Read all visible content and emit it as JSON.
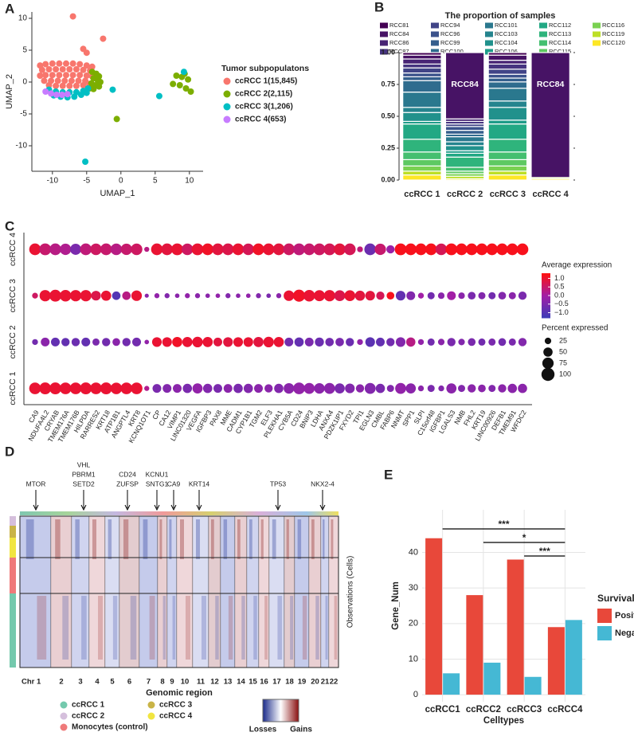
{
  "chart_data": [
    {
      "panel": "A",
      "type": "scatter",
      "x_label": "UMAP_1",
      "y_label": "UMAP_2",
      "legend_title": "Tumor subpopulatons",
      "xlim": [
        -13,
        12
      ],
      "ylim": [
        -14,
        11
      ],
      "xticks": [
        -10,
        -5,
        0,
        5,
        10
      ],
      "yticks": [
        -10,
        -5,
        0,
        5,
        10
      ],
      "series": [
        {
          "name": "ccRCC 1(15,845)",
          "color": "#f8766d",
          "x": [
            -11.8,
            -11,
            -10,
            -9,
            -8,
            -7,
            -6,
            -5,
            -4.2,
            -11.5,
            -10.5,
            -9.5,
            -8.5,
            -7.5,
            -6.5,
            -5.5,
            -4.5,
            -11.8,
            -11,
            -10,
            -9,
            -8,
            -7,
            -6,
            -5,
            -4.2,
            -11.2,
            -10.2,
            -9.2,
            -8.2,
            -7.2,
            -6.2,
            -5.2,
            -10.5,
            -9.5,
            -8.5,
            -7.5,
            -6.5,
            -5.5,
            -4.6,
            -7,
            -2.6,
            -5.5,
            -5
          ],
          "y": [
            2.6,
            2.8,
            2.9,
            2.9,
            2.9,
            2.9,
            2.8,
            2.6,
            2.4,
            1.9,
            2,
            2,
            2,
            2,
            2,
            1.9,
            1.8,
            1,
            1.1,
            1.1,
            1.1,
            1.1,
            1.1,
            1.1,
            1,
            0.9,
            0.2,
            0.2,
            0.2,
            0.2,
            0.2,
            0.2,
            0.2,
            -0.5,
            -0.6,
            -0.6,
            -0.6,
            -0.6,
            -0.5,
            -0.3,
            10.3,
            6.8,
            5.2,
            4.6
          ]
        },
        {
          "name": "ccRCC 2(2,115)",
          "color": "#7cae00",
          "x": [
            -4.2,
            -3.6,
            -3.2,
            -4,
            -3.4,
            -3,
            -4.3,
            -3.7,
            -3.2,
            -4.6,
            -4,
            7.6,
            8.1,
            8.9,
            9.3,
            9.8,
            10.2,
            8.6,
            9.5,
            -0.6
          ],
          "y": [
            1.6,
            1.3,
            0.9,
            0.6,
            0.3,
            0,
            -0.2,
            -0.5,
            -0.7,
            -1,
            -1.1,
            -0.3,
            1,
            0.8,
            1.3,
            0.4,
            -1.5,
            -0.5,
            -1,
            -5.8
          ]
        },
        {
          "name": "ccRCC 3(1,206)",
          "color": "#00bfc4",
          "x": [
            -10.5,
            -9.5,
            -8.5,
            -7.5,
            -6.5,
            -5.5,
            -4.8,
            -9.8,
            -8.8,
            -7.8,
            -6.8,
            -5.8,
            -5,
            -1.2,
            5.6,
            -5.2,
            9.2
          ],
          "y": [
            -1.2,
            -1.5,
            -1.6,
            -1.6,
            -1.6,
            -1.4,
            -1,
            -2.1,
            -2.3,
            -2.4,
            -2.3,
            -2,
            -1.7,
            -1.2,
            -2.2,
            -12.5,
            1.6
          ]
        },
        {
          "name": "ccRCC 4(653)",
          "color": "#c77cff",
          "x": [
            -11,
            -10.2,
            -9.4,
            -8.6,
            -7.8
          ],
          "y": [
            -1.5,
            -1.8,
            -2,
            -2,
            -1.9
          ]
        }
      ]
    },
    {
      "panel": "B",
      "type": "stacked_bar",
      "title": "The proportion of samples",
      "categories": [
        "ccRCC 1",
        "ccRCC 2",
        "ccRCC 3",
        "ccRCC 4"
      ],
      "segment_labels": [
        null,
        "RCC84",
        null,
        "RCC84"
      ],
      "ylim": [
        0,
        1
      ],
      "yticks": [
        {
          "value": 1,
          "label": "1.00"
        },
        {
          "value": 0.75,
          "label": "0.75"
        },
        {
          "value": 0.5,
          "label": "0.50"
        },
        {
          "value": 0.25,
          "label": "0.25"
        },
        {
          "value": 0,
          "label": "0.00"
        }
      ],
      "series": [
        {
          "name": "RCC81",
          "color": "#440154",
          "values": [
            0.02,
            0,
            0.02,
            0
          ]
        },
        {
          "name": "RCC84",
          "color": "#471365",
          "values": [
            0.03,
            0.52,
            0.04,
            0.98
          ]
        },
        {
          "name": "RCC86",
          "color": "#482475",
          "values": [
            0.04,
            0.02,
            0.03,
            0
          ]
        },
        {
          "name": "RCC87",
          "color": "#463480",
          "values": [
            0.03,
            0.02,
            0.04,
            0
          ]
        },
        {
          "name": "RCC94",
          "color": "#414487",
          "values": [
            0.04,
            0.02,
            0.04,
            0
          ]
        },
        {
          "name": "RCC96",
          "color": "#3b528b",
          "values": [
            0.03,
            0.03,
            0.03,
            0
          ]
        },
        {
          "name": "RCC99",
          "color": "#355f8d",
          "values": [
            0.03,
            0.03,
            0.03,
            0
          ]
        },
        {
          "name": "RCC100",
          "color": "#2f6c8e",
          "values": [
            0.09,
            0.02,
            0.05,
            0
          ]
        },
        {
          "name": "RCC101",
          "color": "#2a788e",
          "values": [
            0.12,
            0.04,
            0.1,
            0
          ]
        },
        {
          "name": "RCC103",
          "color": "#25848e",
          "values": [
            0.04,
            0.03,
            0.05,
            0
          ]
        },
        {
          "name": "RCC104",
          "color": "#21918c",
          "values": [
            0.07,
            0.04,
            0.1,
            0
          ]
        },
        {
          "name": "RCC106",
          "color": "#1e9c89",
          "values": [
            0.02,
            0.02,
            0.03,
            0
          ]
        },
        {
          "name": "RCC112",
          "color": "#22a884",
          "values": [
            0.12,
            0.03,
            0.12,
            0
          ]
        },
        {
          "name": "RCC113",
          "color": "#2fb47c",
          "values": [
            0.1,
            0.08,
            0.1,
            0
          ]
        },
        {
          "name": "RCC114",
          "color": "#44bf70",
          "values": [
            0.06,
            0.03,
            0.06,
            0
          ]
        },
        {
          "name": "RCC115",
          "color": "#5ec962",
          "values": [
            0.05,
            0.02,
            0.05,
            0
          ]
        },
        {
          "name": "RCC116",
          "color": "#7ad151",
          "values": [
            0.04,
            0.02,
            0.04,
            0
          ]
        },
        {
          "name": "RCC119",
          "color": "#bddf26",
          "values": [
            0.03,
            0.02,
            0.03,
            0.01
          ]
        },
        {
          "name": "RCC120",
          "color": "#fde725",
          "values": [
            0.04,
            0.01,
            0.04,
            0.01
          ]
        }
      ]
    },
    {
      "panel": "C",
      "type": "dot",
      "genes": [
        "CA9",
        "NDUFA4L2",
        "CRYAB",
        "TMEM176A",
        "TMEM176B",
        "HILPDA",
        "RARRES2",
        "KRT18",
        "ATP1B1",
        "ANGPTL4",
        "KRT8",
        "KCNQ1OT1",
        "CP",
        "CA12",
        "VIMP1",
        "LINC01320",
        "VEGFA",
        "IGFBP3",
        "PAX8",
        "MME",
        "CADM1",
        "CYP1B1",
        "TGM2",
        "ELF3",
        "PLEKHA1",
        "CYB5A",
        "CD24",
        "BNIP3",
        "LDHA",
        "ANXA4",
        "PDZK1IP1",
        "FXYD2",
        "TPI1",
        "EGLN3",
        "CMBL",
        "FABP6",
        "NNMT",
        "SPP1",
        "SLPI",
        "C15orf48",
        "IGFBP1",
        "LGALS3",
        "NMB",
        "FHL2",
        "KRT19",
        "LINC00926",
        "DEFB1",
        "TMEM91",
        "WFDC2"
      ],
      "rows": [
        {
          "name": "ccRCC 4",
          "expression": [
            1,
            0.5,
            0.3,
            0.2,
            -0.5,
            0.4,
            0.6,
            0.5,
            0.3,
            0.5,
            0.6,
            0.3,
            1,
            0.9,
            1,
            0.6,
            1,
            1.1,
            0.9,
            0.8,
            1,
            0.7,
            1.1,
            1,
            0.9,
            0.6,
            0.4,
            0.5,
            0.6,
            0.7,
            0.9,
            0.7,
            0.4,
            -0.7,
            0.5,
            -0.1,
            1.2,
            1.2,
            1.2,
            1.2,
            0.7,
            1.2,
            1.2,
            1.2,
            1.2,
            1.2,
            1.2,
            1.2,
            1.2
          ],
          "percent": [
            80,
            82,
            80,
            75,
            72,
            80,
            78,
            80,
            78,
            76,
            78,
            15,
            80,
            80,
            82,
            78,
            82,
            80,
            80,
            80,
            80,
            78,
            80,
            80,
            80,
            80,
            82,
            80,
            82,
            82,
            82,
            80,
            20,
            80,
            75,
            40,
            82,
            80,
            80,
            80,
            78,
            82,
            80,
            80,
            80,
            80,
            80,
            80,
            80
          ]
        },
        {
          "name": "ccRCC 3",
          "expression": [
            0.6,
            1,
            1,
            1,
            1,
            1,
            0.8,
            1,
            -1,
            0.3,
            1,
            -0.3,
            -0.2,
            -0.4,
            -0.3,
            -0.2,
            -0.3,
            -0.3,
            -0.2,
            -0.4,
            -0.3,
            -0.2,
            -0.4,
            -0.5,
            -0.3,
            1,
            1.1,
            1,
            1,
            1,
            0.8,
            1,
            0.9,
            0.9,
            0.7,
            1.2,
            -0.8,
            -0.4,
            0,
            -0.6,
            -0.3,
            0,
            -0.3,
            -0.5,
            -0.4,
            -0.6,
            -0.4,
            -0.3,
            -0.5
          ],
          "percent": [
            20,
            75,
            82,
            78,
            75,
            75,
            55,
            60,
            42,
            42,
            65,
            10,
            15,
            15,
            12,
            15,
            15,
            12,
            12,
            15,
            12,
            12,
            15,
            12,
            15,
            65,
            85,
            78,
            72,
            75,
            70,
            70,
            60,
            55,
            40,
            35,
            55,
            45,
            20,
            30,
            25,
            45,
            25,
            35,
            30,
            30,
            35,
            30,
            40
          ]
        },
        {
          "name": "ccRCC 2",
          "expression": [
            -0.6,
            -0.3,
            -0.8,
            -0.8,
            -0.7,
            -0.8,
            -0.5,
            -0.6,
            -0.3,
            -0.6,
            -0.6,
            -0.2,
            1,
            1,
            1.1,
            1,
            1,
            1,
            0.9,
            0.9,
            1,
            1,
            0.9,
            1,
            1,
            -0.6,
            -0.8,
            -0.5,
            -0.7,
            -0.6,
            -0.5,
            -0.7,
            -0.2,
            -0.9,
            -0.8,
            -0.6,
            -0.4,
            0.3,
            -0.2,
            -0.6,
            -0.3,
            -0.5,
            -0.4,
            -0.5,
            -0.6,
            -0.5,
            -0.6,
            -0.5,
            -0.4
          ],
          "percent": [
            20,
            45,
            45,
            40,
            40,
            45,
            30,
            40,
            35,
            40,
            45,
            12,
            55,
            55,
            60,
            60,
            65,
            60,
            45,
            55,
            55,
            55,
            60,
            65,
            60,
            45,
            50,
            45,
            48,
            42,
            42,
            40,
            20,
            55,
            45,
            40,
            55,
            50,
            20,
            30,
            25,
            40,
            25,
            35,
            30,
            30,
            35,
            30,
            40
          ]
        },
        {
          "name": "ccRCC 1",
          "expression": [
            1,
            1,
            1,
            1,
            1,
            1,
            1,
            1,
            1,
            1,
            1,
            0.2,
            -0.5,
            -0.4,
            -0.3,
            -0.5,
            -0.2,
            -0.4,
            -0.5,
            -0.3,
            -0.5,
            -0.4,
            -0.3,
            -0.3,
            -0.4,
            -0.3,
            -0.2,
            -0.2,
            -0.3,
            -0.3,
            -0.5,
            -0.4,
            -0.3,
            -0.4,
            -0.5,
            -0.4,
            -0.2,
            -0.3,
            -0.3,
            -0.5,
            -0.4,
            -0.3,
            -0.4,
            -0.3,
            -0.3,
            -0.4,
            -0.3,
            -0.3,
            -0.3
          ],
          "percent": [
            80,
            82,
            82,
            80,
            80,
            82,
            80,
            82,
            78,
            80,
            80,
            15,
            45,
            45,
            45,
            50,
            60,
            50,
            45,
            45,
            50,
            50,
            45,
            40,
            50,
            65,
            80,
            70,
            65,
            70,
            60,
            55,
            40,
            70,
            50,
            30,
            70,
            60,
            20,
            30,
            20,
            60,
            30,
            40,
            35,
            30,
            40,
            50,
            50
          ]
        }
      ],
      "color_title": "Average expression",
      "clim": [
        -1.3,
        1.3
      ],
      "colors": [
        "#3b3bb8",
        "#a21fa6",
        "#ff1010"
      ],
      "color_ticks": [
        {
          "value": 1,
          "label": "1.0"
        },
        {
          "value": 0.5,
          "label": "0.5"
        },
        {
          "value": 0,
          "label": "0.0"
        },
        {
          "value": -0.5,
          "label": "−0.5"
        },
        {
          "value": -1,
          "label": "−1.0"
        }
      ],
      "size_title": "Percent expressed",
      "size_ticks": [
        25,
        50,
        75,
        100
      ]
    },
    {
      "panel": "E",
      "type": "grouped_bar",
      "categories": [
        "ccRCC1",
        "ccRCC2",
        "ccRCC3",
        "ccRCC4"
      ],
      "x_label": "Celltypes",
      "y_label": "Gene_Num",
      "legend_title": "Survival",
      "ylim": [
        -2,
        52
      ],
      "yticks": [
        0,
        10,
        20,
        30,
        40
      ],
      "grid": true,
      "series": [
        {
          "name": "Positive",
          "color": "#e8483a",
          "values": [
            44,
            28,
            38,
            19
          ]
        },
        {
          "name": "Negative",
          "color": "#45b8d4",
          "values": [
            6,
            9,
            5,
            21
          ]
        }
      ],
      "significance": [
        "***",
        "*",
        "***"
      ]
    }
  ],
  "cnv_panel": {
    "panel": "D",
    "genes": [
      [
        "MTOR"
      ],
      [
        "VHL",
        "PBRM1",
        "SETD2"
      ],
      [
        "CD24",
        "ZUFSP"
      ],
      [
        "KCNU1",
        "SNTG1"
      ],
      [
        "CA9"
      ],
      [
        "KRT14"
      ],
      [
        "TP53"
      ],
      [
        "NKX2-4"
      ]
    ],
    "chromosomes": [
      "Chr 1",
      "2",
      "3",
      "4",
      "5",
      "6",
      "7",
      "8",
      "9",
      "10",
      "11",
      "12",
      "13",
      "14",
      "15",
      "16",
      "17",
      "18",
      "19",
      "20",
      "21",
      "22"
    ],
    "x_label": "Genomic region",
    "y_label": "Observations (Cells)",
    "legend": [
      {
        "name": "ccRCC 1",
        "color": "#74c9ad"
      },
      {
        "name": "ccRCC 2",
        "color": "#d5bfdc"
      },
      {
        "name": "Monocytes (control)",
        "color": "#ef7a7a"
      },
      {
        "name": "ccRCC 3",
        "color": "#c9b447"
      },
      {
        "name": "ccRCC 4",
        "color": "#f1e540"
      }
    ],
    "scale_low": "Losses",
    "scale_high": "Gains"
  }
}
